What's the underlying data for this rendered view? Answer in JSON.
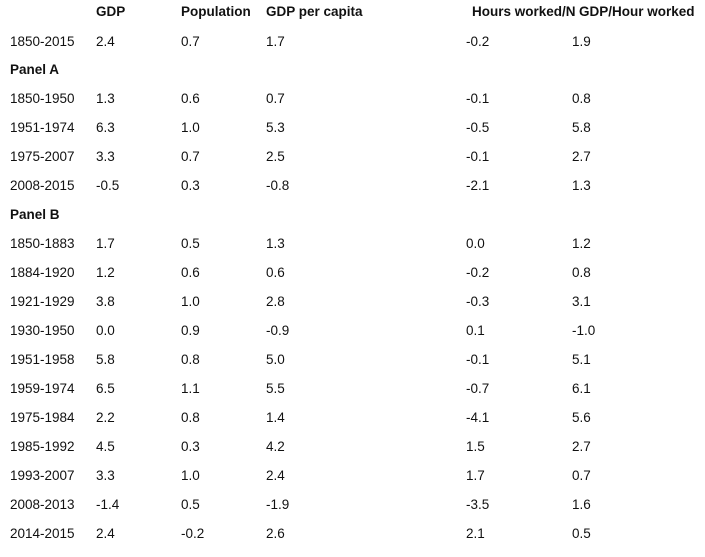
{
  "table": {
    "headers": [
      "GDP",
      "Population",
      "GDP per capita",
      "Hours worked/N",
      "GDP/Hour worked"
    ],
    "overall": {
      "period": "1850-2015",
      "values": [
        "2.4",
        "0.7",
        "1.7",
        "-0.2",
        "1.9"
      ]
    },
    "panels": [
      {
        "label": "Panel A",
        "rows": [
          {
            "period": "1850-1950",
            "values": [
              "1.3",
              "0.6",
              "0.7",
              "-0.1",
              "0.8"
            ]
          },
          {
            "period": "1951-1974",
            "values": [
              "6.3",
              "1.0",
              "5.3",
              "-0.5",
              "5.8"
            ]
          },
          {
            "period": "1975-2007",
            "values": [
              "3.3",
              "0.7",
              "2.5",
              "-0.1",
              "2.7"
            ]
          },
          {
            "period": "2008-2015",
            "values": [
              "-0.5",
              "0.3",
              "-0.8",
              "-2.1",
              "1.3"
            ]
          }
        ]
      },
      {
        "label": "Panel B",
        "rows": [
          {
            "period": "1850-1883",
            "values": [
              "1.7",
              "0.5",
              "1.3",
              "0.0",
              "1.2"
            ]
          },
          {
            "period": "1884-1920",
            "values": [
              "1.2",
              "0.6",
              "0.6",
              "-0.2",
              "0.8"
            ]
          },
          {
            "period": "1921-1929",
            "values": [
              "3.8",
              "1.0",
              "2.8",
              "-0.3",
              "3.1"
            ]
          },
          {
            "period": "1930-1950",
            "values": [
              "0.0",
              "0.9",
              "-0.9",
              "0.1",
              "-1.0"
            ]
          },
          {
            "period": "1951-1958",
            "values": [
              "5.8",
              "0.8",
              "5.0",
              "-0.1",
              "5.1"
            ]
          },
          {
            "period": "1959-1974",
            "values": [
              "6.5",
              "1.1",
              "5.5",
              "-0.7",
              "6.1"
            ]
          },
          {
            "period": "1975-1984",
            "values": [
              "2.2",
              "0.8",
              "1.4",
              "-4.1",
              "5.6"
            ]
          },
          {
            "period": "1985-1992",
            "values": [
              "4.5",
              "0.3",
              "4.2",
              "1.5",
              "2.7"
            ]
          },
          {
            "period": "1993-2007",
            "values": [
              "3.3",
              "1.0",
              "2.4",
              "1.7",
              "0.7"
            ]
          },
          {
            "period": "2008-2013",
            "values": [
              "-1.4",
              "0.5",
              "-1.9",
              "-3.5",
              "1.6"
            ]
          },
          {
            "period": "2014-2015",
            "values": [
              "2.4",
              "-0.2",
              "2.6",
              "2.1",
              "0.5"
            ]
          }
        ]
      }
    ]
  }
}
